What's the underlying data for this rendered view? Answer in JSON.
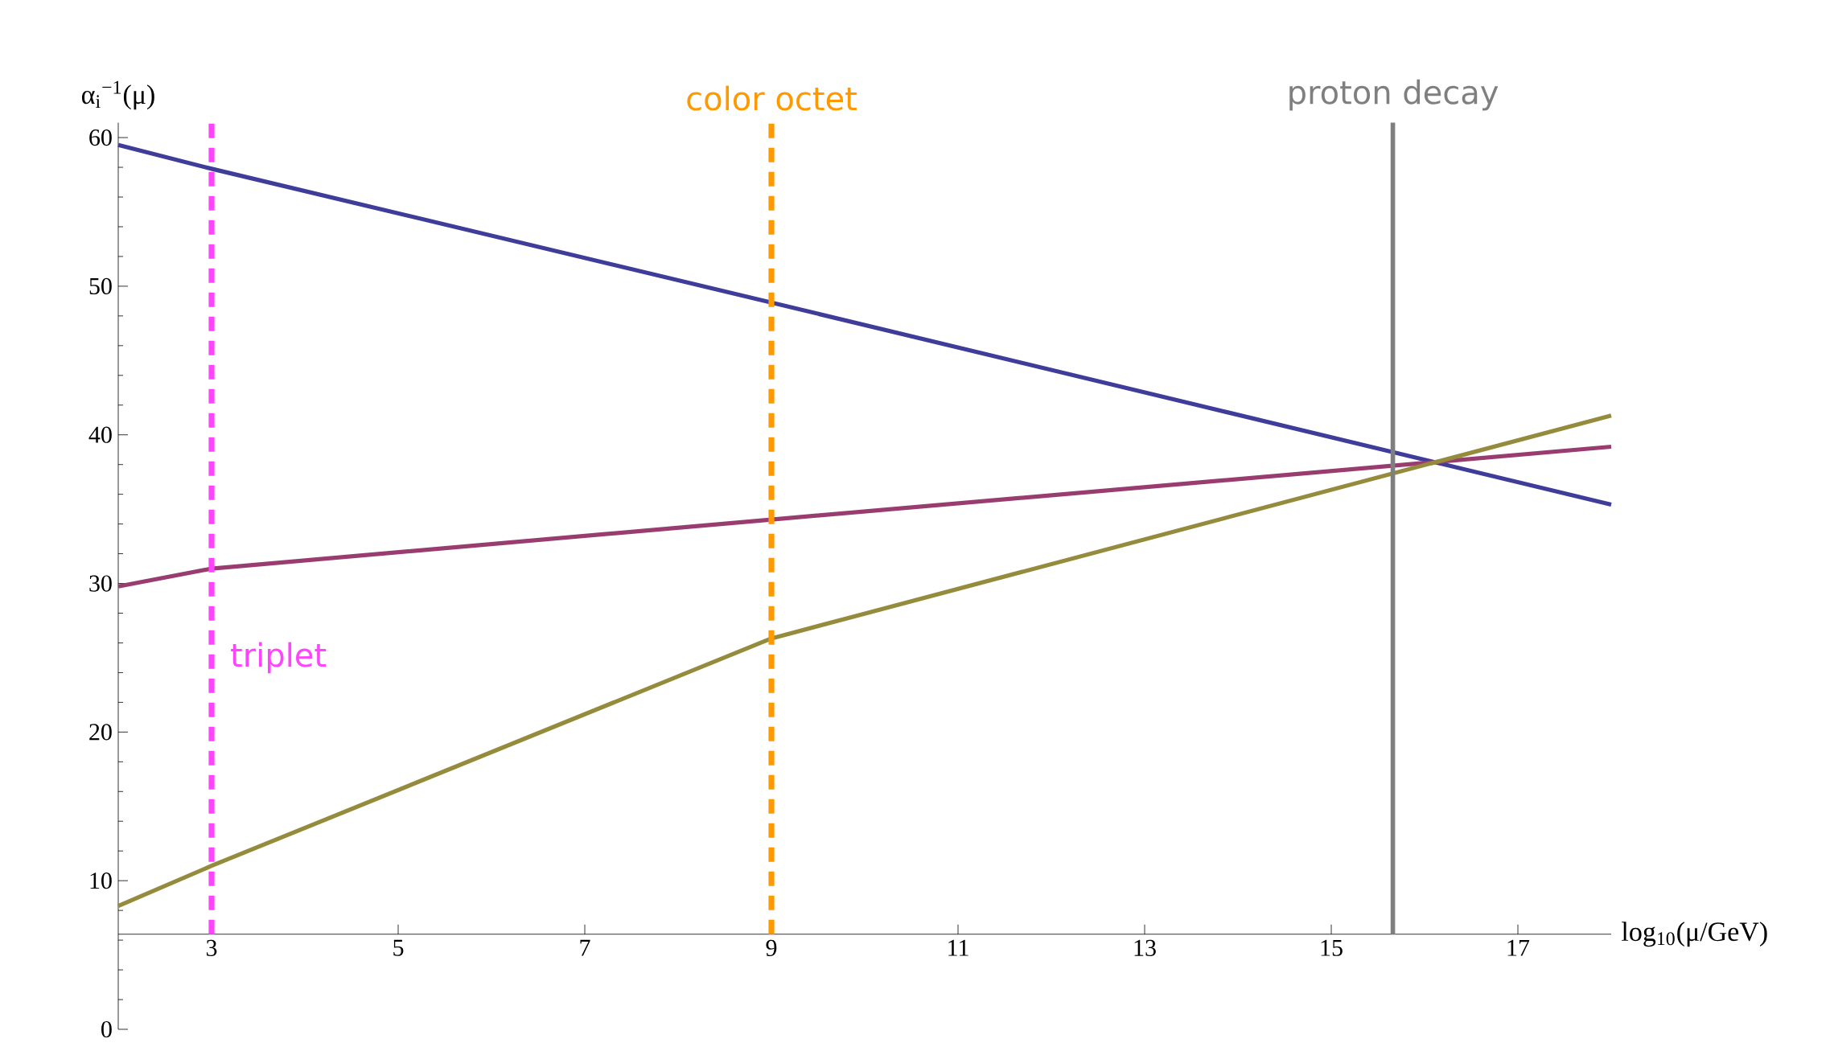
{
  "chart_data": {
    "type": "line",
    "xlabel": "log$_{10}$(μ/GeV)",
    "ylabel": "α$_{i}$$^{−1}$(μ)",
    "x": [
      2,
      3,
      9,
      18
    ],
    "series": [
      {
        "color": "#3f3d99",
        "values": [
          59.5,
          57.9,
          48.9,
          35.3
        ]
      },
      {
        "color": "#993d71",
        "values": [
          29.8,
          31.0,
          34.3,
          39.2
        ]
      },
      {
        "color": "#948b3d",
        "values": [
          8.3,
          11.0,
          26.3,
          41.3
        ]
      }
    ],
    "xlim": [
      2,
      18
    ],
    "ylim": [
      0,
      61
    ],
    "xticks": [
      3,
      5,
      7,
      9,
      11,
      13,
      15,
      17
    ],
    "yticks": [
      0,
      10,
      20,
      30,
      40,
      50,
      60
    ],
    "ref_lines": [
      {
        "axis": "x",
        "value": 3,
        "color": "#ff44ff",
        "line_style": "dashed"
      },
      {
        "axis": "x",
        "value": 9,
        "color": "#ff9900",
        "line_style": "dashed",
        "label": "color octet"
      },
      {
        "axis": "x",
        "value": 15.66,
        "color": "#7f7f7f",
        "line_style": "solid",
        "label": "proton decay"
      }
    ],
    "annotations": [
      {
        "text": "triplet",
        "x": 3,
        "y": 25
      }
    ],
    "grid": false,
    "marker": "none",
    "line_style": "solid"
  }
}
